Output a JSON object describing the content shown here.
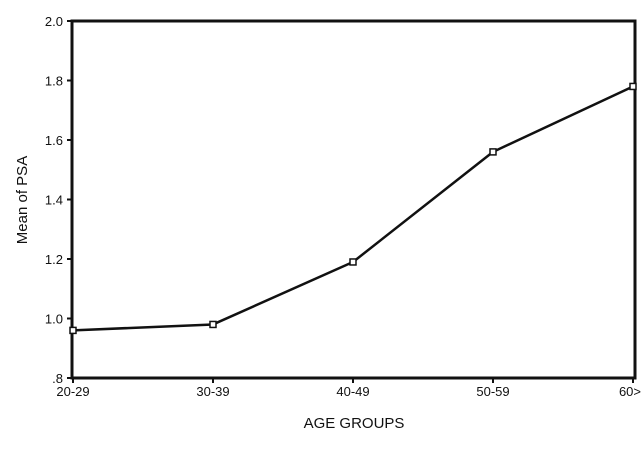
{
  "chart_data": {
    "type": "line",
    "title": "",
    "xlabel": "AGE GROUPS",
    "ylabel": "Mean of PSA",
    "categories": [
      "20-29",
      "30-39",
      "40-49",
      "50-59",
      "60>"
    ],
    "series": [
      {
        "values": [
          0.96,
          0.98,
          1.19,
          1.56,
          1.78
        ]
      }
    ],
    "ylim": [
      0.8,
      2.0
    ],
    "yticks": [
      {
        "value": 0.8,
        "label": ".8"
      },
      {
        "value": 1.0,
        "label": "1.0"
      },
      {
        "value": 1.2,
        "label": "1.2"
      },
      {
        "value": 1.4,
        "label": "1.4"
      },
      {
        "value": 1.6,
        "label": "1.6"
      },
      {
        "value": 1.8,
        "label": "1.8"
      },
      {
        "value": 2.0,
        "label": "2.0"
      }
    ],
    "grid": false,
    "legend": "none",
    "line_color": "#111111"
  }
}
